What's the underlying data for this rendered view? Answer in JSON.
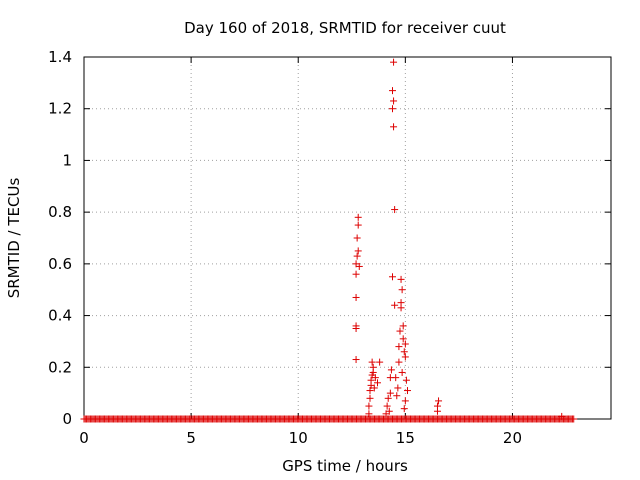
{
  "chart_data": {
    "type": "scatter",
    "title": "Day 160 of 2018, SRMTID for receiver cuut",
    "xlabel": "GPS time / hours",
    "ylabel": "SRMTID / TECUs",
    "xlim": [
      0,
      24.6
    ],
    "ylim": [
      0,
      1.4
    ],
    "xticks": [
      0,
      5,
      10,
      15,
      20
    ],
    "yticks": [
      0,
      0.2,
      0.4,
      0.6,
      0.8,
      1,
      1.2,
      1.4
    ],
    "xtick_labels": [
      "0",
      "5",
      "10",
      "15",
      "20"
    ],
    "ytick_labels": [
      "0",
      "0.2",
      "0.4",
      "0.6",
      "0.8",
      "1",
      "1.2",
      "1.4"
    ],
    "grid": true,
    "marker": "+",
    "series": [
      {
        "name": "SRMTID",
        "color": "#dd0000",
        "baseline_range_hours": [
          0.0,
          22.9
        ],
        "baseline_value": 0.0,
        "points": [
          [
            12.7,
            0.23
          ],
          [
            12.7,
            0.35
          ],
          [
            12.7,
            0.36
          ],
          [
            12.7,
            0.47
          ],
          [
            12.7,
            0.56
          ],
          [
            12.7,
            0.6
          ],
          [
            12.75,
            0.63
          ],
          [
            12.8,
            0.65
          ],
          [
            12.75,
            0.7
          ],
          [
            12.8,
            0.75
          ],
          [
            12.8,
            0.78
          ],
          [
            12.85,
            0.59
          ],
          [
            13.3,
            0.02
          ],
          [
            13.3,
            0.05
          ],
          [
            13.35,
            0.08
          ],
          [
            13.35,
            0.11
          ],
          [
            13.4,
            0.13
          ],
          [
            13.4,
            0.15
          ],
          [
            13.45,
            0.17
          ],
          [
            13.5,
            0.18
          ],
          [
            13.5,
            0.2
          ],
          [
            13.45,
            0.22
          ],
          [
            13.55,
            0.12
          ],
          [
            13.6,
            0.16
          ],
          [
            13.7,
            0.14
          ],
          [
            13.8,
            0.22
          ],
          [
            14.1,
            0.02
          ],
          [
            14.15,
            0.05
          ],
          [
            14.2,
            0.08
          ],
          [
            14.25,
            0.03
          ],
          [
            14.3,
            0.1
          ],
          [
            14.3,
            0.16
          ],
          [
            14.35,
            0.19
          ],
          [
            14.4,
            0.55
          ],
          [
            14.45,
            1.13
          ],
          [
            14.4,
            1.2
          ],
          [
            14.45,
            1.23
          ],
          [
            14.4,
            1.27
          ],
          [
            14.45,
            1.38
          ],
          [
            14.5,
            0.81
          ],
          [
            14.5,
            0.44
          ],
          [
            14.55,
            0.16
          ],
          [
            14.6,
            0.09
          ],
          [
            14.65,
            0.12
          ],
          [
            14.7,
            0.22
          ],
          [
            14.7,
            0.28
          ],
          [
            14.75,
            0.34
          ],
          [
            14.8,
            0.43
          ],
          [
            14.8,
            0.45
          ],
          [
            14.85,
            0.5
          ],
          [
            14.8,
            0.54
          ],
          [
            14.9,
            0.36
          ],
          [
            14.9,
            0.31
          ],
          [
            14.95,
            0.26
          ],
          [
            15.0,
            0.24
          ],
          [
            15.0,
            0.29
          ],
          [
            14.85,
            0.18
          ],
          [
            15.05,
            0.15
          ],
          [
            15.1,
            0.11
          ],
          [
            15.0,
            0.07
          ],
          [
            14.95,
            0.04
          ],
          [
            16.5,
            0.03
          ],
          [
            16.5,
            0.05
          ],
          [
            16.55,
            0.07
          ],
          [
            22.3,
            0.01
          ]
        ]
      }
    ]
  }
}
